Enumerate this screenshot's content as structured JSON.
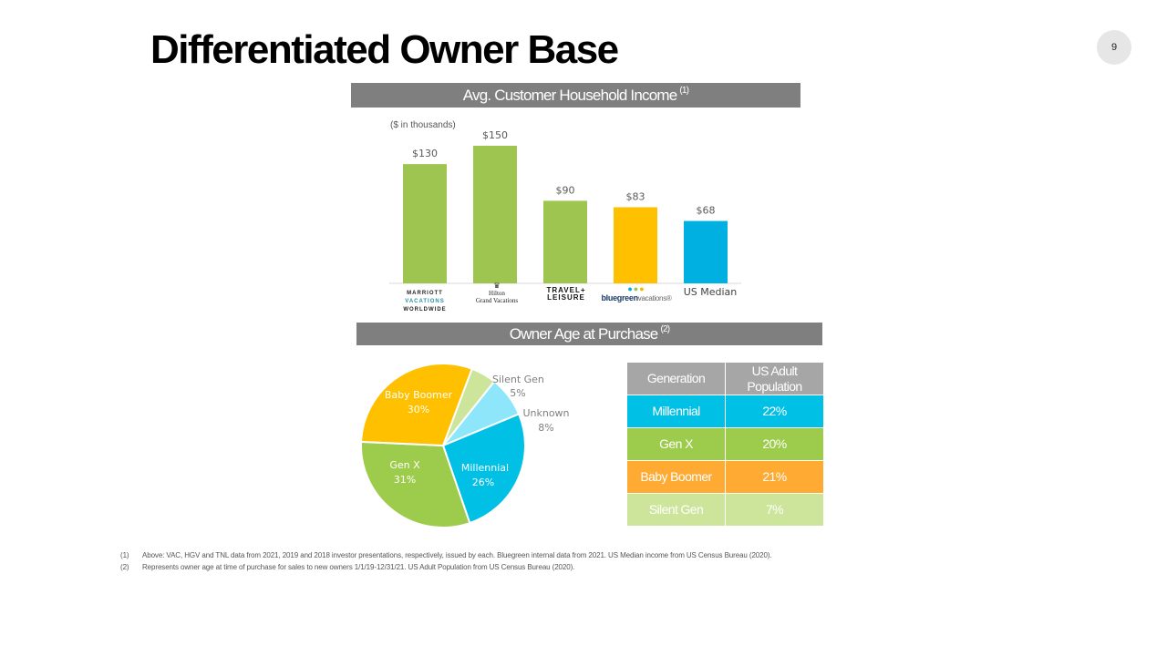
{
  "page": {
    "title": "Differentiated Owner Base",
    "page_number": "9"
  },
  "income_section": {
    "title": "Avg. Customer Household Income",
    "footnote_ref": "(1)",
    "units": "($ in thousands)"
  },
  "age_section": {
    "title": "Owner Age at Purchase",
    "footnote_ref": "(2)"
  },
  "logos": {
    "marriott": {
      "line1": "MARRIOTT",
      "line2": "VACATIONS",
      "line3": "WORLDWIDE"
    },
    "hilton": {
      "crest": "♛",
      "line1": "Hilton",
      "line2": "Grand Vacations"
    },
    "travel_leisure": {
      "line1": "TRAVEL+",
      "line2": "LEISURE"
    },
    "bluegreen": {
      "dots": "●●●",
      "bold": "bluegreen",
      "light": "vacations",
      "mark": "®"
    },
    "us_median": "US Median"
  },
  "chart_data": [
    {
      "type": "bar",
      "title": "Avg. Customer Household Income",
      "ylabel": "($ in thousands)",
      "categories": [
        "Marriott Vacations Worldwide",
        "Hilton Grand Vacations",
        "Travel + Leisure",
        "Bluegreen Vacations",
        "US Median"
      ],
      "values": [
        130,
        150,
        90,
        83,
        68
      ],
      "value_labels": [
        "$130",
        "$150",
        "$90",
        "$83",
        "$68"
      ],
      "colors": [
        "#9DC54F",
        "#9DC54F",
        "#9DC54F",
        "#FFC000",
        "#00B0E0"
      ],
      "ylim": [
        0,
        160
      ],
      "grid": false
    },
    {
      "type": "pie",
      "title": "Owner Age at Purchase",
      "slices": [
        {
          "label": "Silent Gen",
          "value": 5,
          "value_label": "5%",
          "color": "#CDE59A",
          "label_color": "#7f7f7f",
          "label_side": "outside"
        },
        {
          "label": "Unknown",
          "value": 8,
          "value_label": "8%",
          "color": "#8EE6FA",
          "label_color": "#7f7f7f",
          "label_side": "outside"
        },
        {
          "label": "Millennial",
          "value": 26,
          "value_label": "26%",
          "color": "#00C0E6",
          "label_color": "#ffffff",
          "label_side": "inside"
        },
        {
          "label": "Gen X",
          "value": 31,
          "value_label": "31%",
          "color": "#9DCB4B",
          "label_color": "#ffffff",
          "label_side": "inside"
        },
        {
          "label": "Baby Boomer",
          "value": 30,
          "value_label": "30%",
          "color": "#FFC000",
          "label_color": "#ffffff",
          "label_side": "inside"
        }
      ]
    },
    {
      "type": "table",
      "columns": [
        "Generation",
        "US Adult Population"
      ],
      "rows": [
        {
          "generation": "Millennial",
          "population": "22%",
          "color": "#00C0E6"
        },
        {
          "generation": "Gen X",
          "population": "20%",
          "color": "#9DCB4B"
        },
        {
          "generation": "Baby Boomer",
          "population": "21%",
          "color": "#FFAA33"
        },
        {
          "generation": "Silent Gen",
          "population": "7%",
          "color": "#CDE59A"
        }
      ]
    }
  ],
  "footnotes": [
    {
      "num": "(1)",
      "text": "Above: VAC, HGV and TNL data from 2021, 2019 and 2018 investor presentations, respectively, issued by each. Bluegreen internal data from 2021. US Median income from US Census Bureau (2020)."
    },
    {
      "num": "(2)",
      "text": "Represents owner age at time of purchase for sales to new owners 1/1/19-12/31/21. US Adult Population from US Census Bureau (2020)."
    }
  ]
}
